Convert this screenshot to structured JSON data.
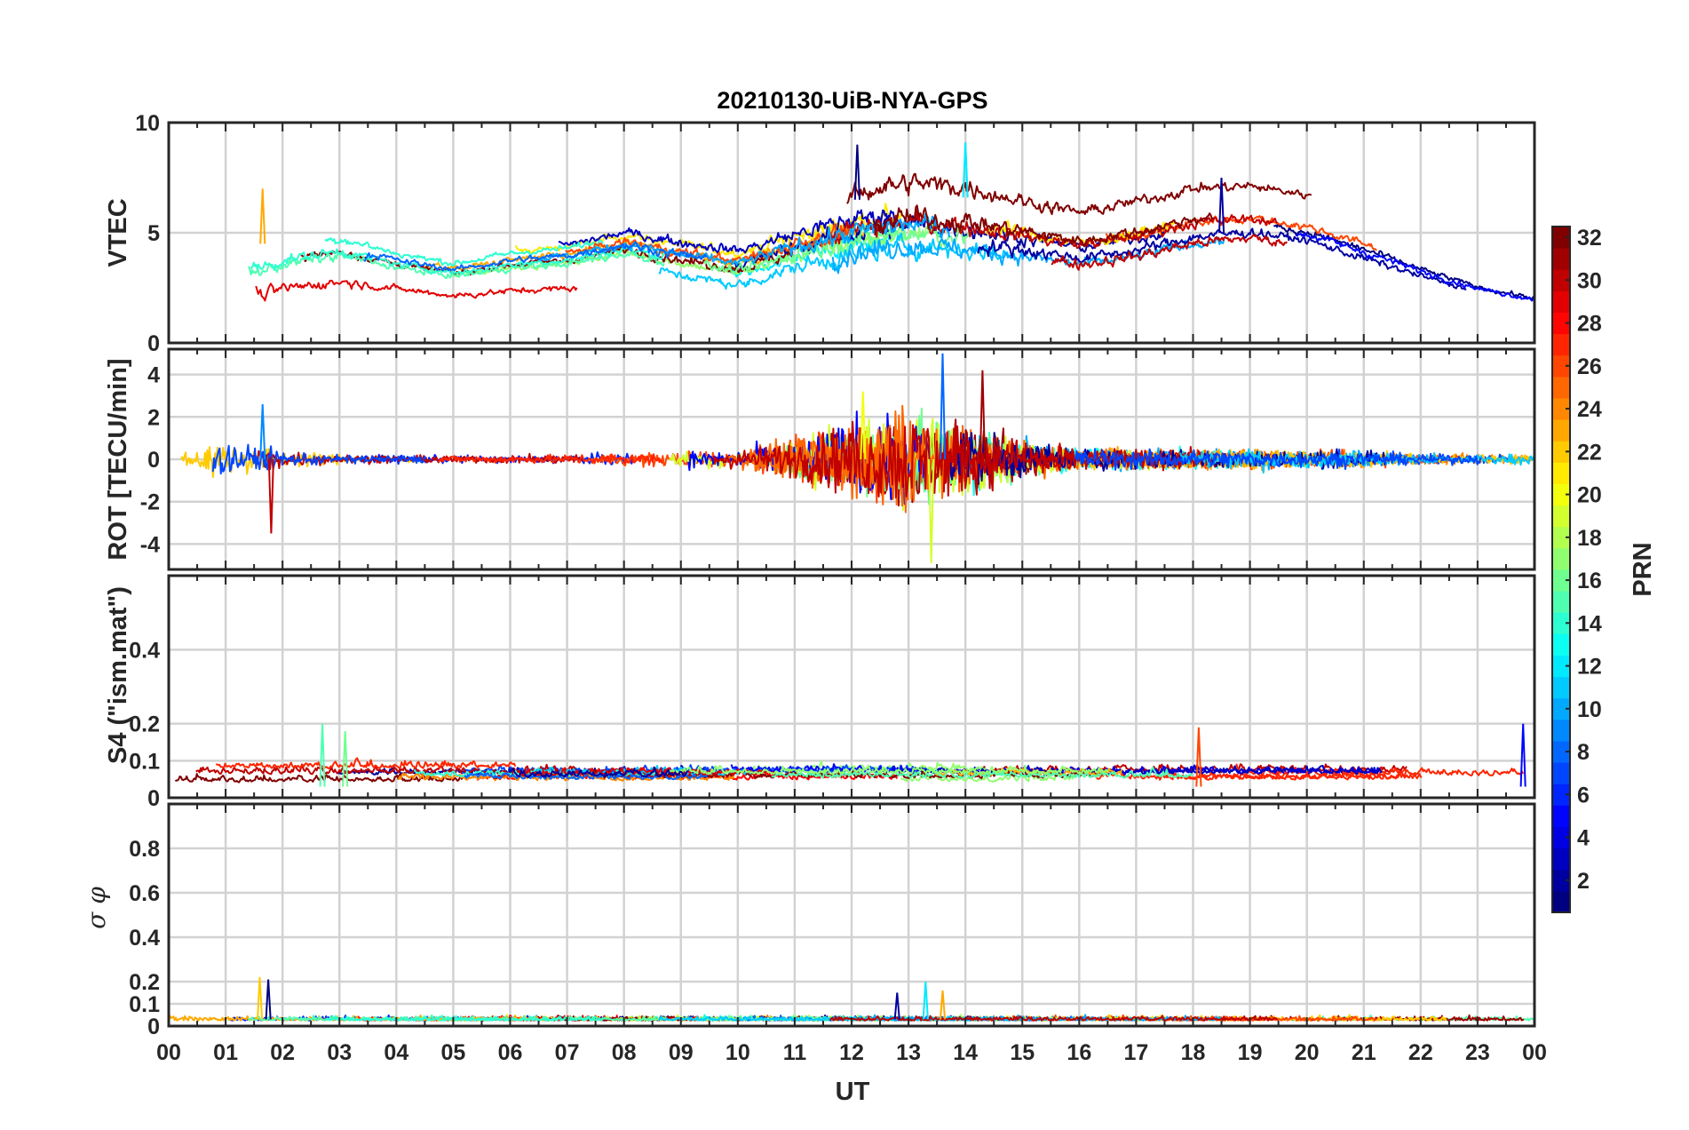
{
  "chart_data": {
    "type": "line",
    "title": "20210130-UiB-NYA-GPS",
    "xlabel": "UT",
    "x_tick_labels": [
      "00",
      "01",
      "02",
      "03",
      "04",
      "05",
      "06",
      "07",
      "08",
      "09",
      "10",
      "11",
      "12",
      "13",
      "14",
      "15",
      "16",
      "17",
      "18",
      "19",
      "20",
      "21",
      "22",
      "23",
      "00"
    ],
    "xlim_hours": [
      0,
      24
    ],
    "grid": true,
    "colorbar": {
      "label": "PRN",
      "range": [
        1,
        32
      ],
      "tick_labels": [
        "2",
        "4",
        "6",
        "8",
        "10",
        "12",
        "14",
        "16",
        "18",
        "20",
        "22",
        "24",
        "26",
        "28",
        "30",
        "32"
      ]
    },
    "panels": [
      {
        "id": "vtec",
        "ylabel": "VTEC",
        "ylim": [
          0,
          10
        ],
        "y_ticks": [
          0,
          5,
          10
        ],
        "y_tick_labels": [
          "0",
          "5",
          "10"
        ],
        "series_envelope": {
          "hours": [
            0,
            1,
            2,
            3,
            4,
            5,
            6,
            7,
            8,
            9,
            10,
            11,
            12,
            13,
            14,
            15,
            16,
            17,
            18,
            19,
            20,
            21,
            22,
            23,
            24
          ],
          "typical": [
            2.8,
            3.0,
            3.8,
            4.2,
            3.6,
            3.2,
            3.6,
            3.8,
            4.3,
            3.8,
            3.4,
            4.2,
            4.8,
            5.2,
            5.0,
            4.6,
            4.2,
            4.6,
            5.2,
            5.4,
            5.0,
            4.2,
            3.3,
            2.5,
            2.0
          ],
          "spread": [
            1.2,
            1.6,
            1.5,
            1.6,
            1.3,
            1.2,
            1.4,
            1.5,
            1.6,
            1.7,
            1.8,
            1.7,
            1.8,
            1.8,
            1.8,
            1.6,
            1.5,
            1.6,
            1.6,
            1.5,
            1.5,
            1.6,
            1.2,
            0.8,
            0.6
          ],
          "noise": [
            0.25,
            0.5,
            0.35,
            0.3,
            0.2,
            0.2,
            0.2,
            0.2,
            0.3,
            0.3,
            0.3,
            0.5,
            0.7,
            0.7,
            0.6,
            0.45,
            0.35,
            0.35,
            0.35,
            0.3,
            0.25,
            0.25,
            0.2,
            0.15,
            0.15
          ]
        },
        "peaks": [
          {
            "t": 12.1,
            "value": 9.0
          },
          {
            "t": 14.0,
            "value": 9.1
          },
          {
            "t": 1.65,
            "value": 7.0
          },
          {
            "t": 18.5,
            "value": 7.5
          }
        ]
      },
      {
        "id": "rot",
        "ylabel": "ROT [TECU/min]",
        "ylim": [
          -5.2,
          5.2
        ],
        "y_ticks": [
          -4,
          -2,
          0,
          2,
          4
        ],
        "y_tick_labels": [
          "-4",
          "-2",
          "0",
          "2",
          "4"
        ],
        "series_envelope": {
          "hours": [
            0,
            1,
            2,
            3,
            4,
            5,
            6,
            7,
            8,
            9,
            10,
            11,
            12,
            13,
            14,
            15,
            16,
            17,
            18,
            19,
            20,
            21,
            22,
            23,
            24
          ],
          "noise": [
            0.15,
            0.6,
            0.25,
            0.15,
            0.12,
            0.12,
            0.12,
            0.15,
            0.2,
            0.25,
            0.3,
            0.6,
            1.2,
            1.6,
            1.1,
            0.6,
            0.35,
            0.3,
            0.3,
            0.3,
            0.25,
            0.25,
            0.15,
            0.15,
            0.15
          ]
        },
        "peaks": [
          {
            "t": 13.6,
            "value": 5.0
          },
          {
            "t": 13.4,
            "value": -4.9
          },
          {
            "t": 1.8,
            "value": -3.5
          },
          {
            "t": 1.65,
            "value": 2.6
          },
          {
            "t": 12.2,
            "value": 3.2
          },
          {
            "t": 14.3,
            "value": 4.2
          }
        ]
      },
      {
        "id": "s4",
        "ylabel": "S4 (\"ism.mat\")",
        "ylim": [
          0,
          0.6
        ],
        "y_ticks": [
          0,
          0.1,
          0.2,
          0.4
        ],
        "y_tick_labels": [
          "0",
          "0.1",
          "0.2",
          "0.4"
        ],
        "series_envelope": {
          "typical": 0.07,
          "spread": 0.025,
          "noise": 0.02
        },
        "peaks": [
          {
            "t": 2.7,
            "value": 0.2
          },
          {
            "t": 18.1,
            "value": 0.19
          },
          {
            "t": 23.8,
            "value": 0.2
          },
          {
            "t": 3.1,
            "value": 0.18
          }
        ]
      },
      {
        "id": "sigma_phi",
        "ylabel": "σ φ",
        "ylim": [
          0,
          1.0
        ],
        "y_ticks": [
          0,
          0.1,
          0.2,
          0.4,
          0.6,
          0.8
        ],
        "y_tick_labels": [
          "0",
          "0.1",
          "0.2",
          "0.4",
          "0.6",
          "0.8"
        ],
        "series_envelope": {
          "typical": 0.025,
          "noise": 0.015
        },
        "peaks": [
          {
            "t": 1.6,
            "value": 0.22
          },
          {
            "t": 1.75,
            "value": 0.21
          },
          {
            "t": 13.3,
            "value": 0.2
          },
          {
            "t": 13.6,
            "value": 0.16
          },
          {
            "t": 12.8,
            "value": 0.15
          }
        ]
      }
    ]
  }
}
